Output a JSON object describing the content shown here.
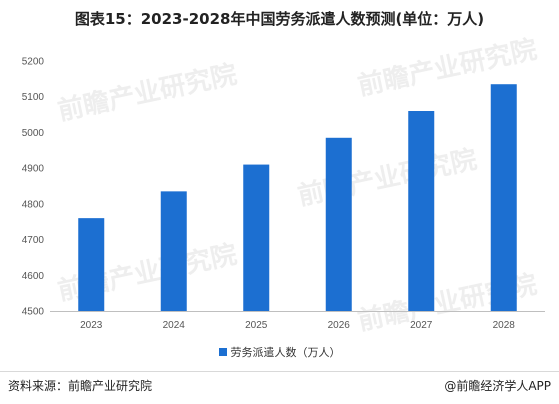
{
  "title": "图表15：2023-2028年中国劳务派遣人数预测(单位：万人)",
  "legend": {
    "label": "劳务派遣人数（万人）"
  },
  "footer": {
    "source": "资料来源：前瞻产业研究院",
    "brand": "@前瞻经济学人APP"
  },
  "watermark": {
    "text": "前瞻产业研究院"
  },
  "colors": {
    "bar": "#1c6fd1",
    "axis": "#bfbfbf"
  },
  "chart_data": {
    "type": "bar",
    "categories": [
      "2023",
      "2024",
      "2025",
      "2026",
      "2027",
      "2028"
    ],
    "series": [
      {
        "name": "劳务派遣人数（万人）",
        "values": [
          4760,
          4835,
          4910,
          4985,
          5060,
          5135
        ]
      }
    ],
    "ylim": [
      4500,
      5200
    ],
    "yticks": [
      4500,
      4600,
      4700,
      4800,
      4900,
      5000,
      5100,
      5200
    ],
    "grid": false,
    "legend_position": "bottom"
  }
}
